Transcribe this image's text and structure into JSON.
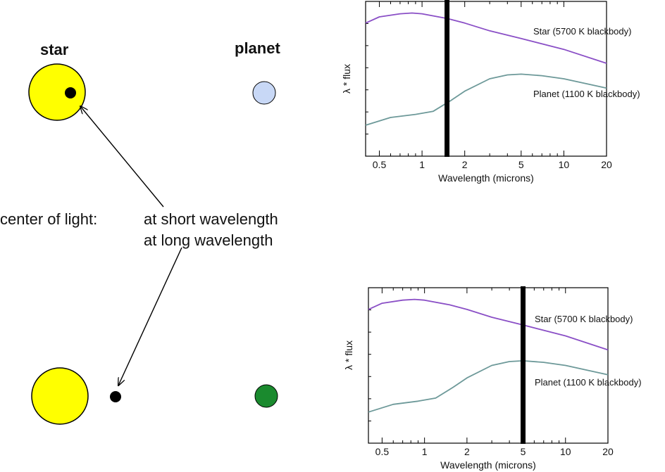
{
  "diagram": {
    "star_label": "star",
    "planet_label": "planet",
    "center_of_light_label": "center of light:",
    "short_wavelength_label": "at short wavelength",
    "long_wavelength_label": "at long wavelength",
    "colors": {
      "star": "#ffff00",
      "planet_short": "#c8d8f6",
      "planet_long": "#1a8a2e",
      "centroid": "#000000"
    }
  },
  "chart_data": [
    {
      "type": "line",
      "xscale": "log",
      "xlim": [
        0.4,
        20
      ],
      "xticks": [
        0.5,
        1,
        2,
        5,
        10,
        20
      ],
      "xtick_labels": [
        "0.5",
        "1",
        "2",
        "5",
        "10",
        "20"
      ],
      "xlabel": "Wavelength (microns)",
      "ylabel": "λ * flux",
      "marker_wavelength": 1.5,
      "series": [
        {
          "name": "Star (5700 K blackbody)",
          "color": "#8a4fc6",
          "x": [
            0.4,
            0.5,
            0.7,
            0.85,
            1.0,
            1.5,
            2,
            3,
            5,
            10,
            20
          ],
          "y": [
            0.86,
            0.9,
            0.92,
            0.925,
            0.92,
            0.89,
            0.86,
            0.81,
            0.76,
            0.69,
            0.6
          ]
        },
        {
          "name": "Planet (1100 K blackbody)",
          "color": "#6d9999",
          "x": [
            0.4,
            0.6,
            0.9,
            1.2,
            1.6,
            2,
            3,
            4,
            5,
            7,
            10,
            15,
            20
          ],
          "y": [
            0.2,
            0.25,
            0.27,
            0.29,
            0.36,
            0.42,
            0.5,
            0.525,
            0.53,
            0.52,
            0.5,
            0.465,
            0.44
          ]
        }
      ]
    },
    {
      "type": "line",
      "xscale": "log",
      "xlim": [
        0.4,
        20
      ],
      "xticks": [
        0.5,
        1,
        2,
        5,
        10,
        20
      ],
      "xtick_labels": [
        "0.5",
        "1",
        "2",
        "5",
        "10",
        "20"
      ],
      "xlabel": "Wavelength (microns)",
      "ylabel": "λ * flux",
      "marker_wavelength": 5,
      "series": [
        {
          "name": "Star (5700 K blackbody)",
          "color": "#8a4fc6",
          "x": [
            0.4,
            0.5,
            0.7,
            0.85,
            1.0,
            1.5,
            2,
            3,
            5,
            10,
            20
          ],
          "y": [
            0.86,
            0.9,
            0.92,
            0.925,
            0.92,
            0.89,
            0.86,
            0.81,
            0.76,
            0.69,
            0.6
          ]
        },
        {
          "name": "Planet (1100 K blackbody)",
          "color": "#6d9999",
          "x": [
            0.4,
            0.6,
            0.9,
            1.2,
            1.6,
            2,
            3,
            4,
            5,
            7,
            10,
            15,
            20
          ],
          "y": [
            0.2,
            0.25,
            0.27,
            0.29,
            0.36,
            0.42,
            0.5,
            0.525,
            0.53,
            0.52,
            0.5,
            0.465,
            0.44
          ]
        }
      ]
    }
  ]
}
